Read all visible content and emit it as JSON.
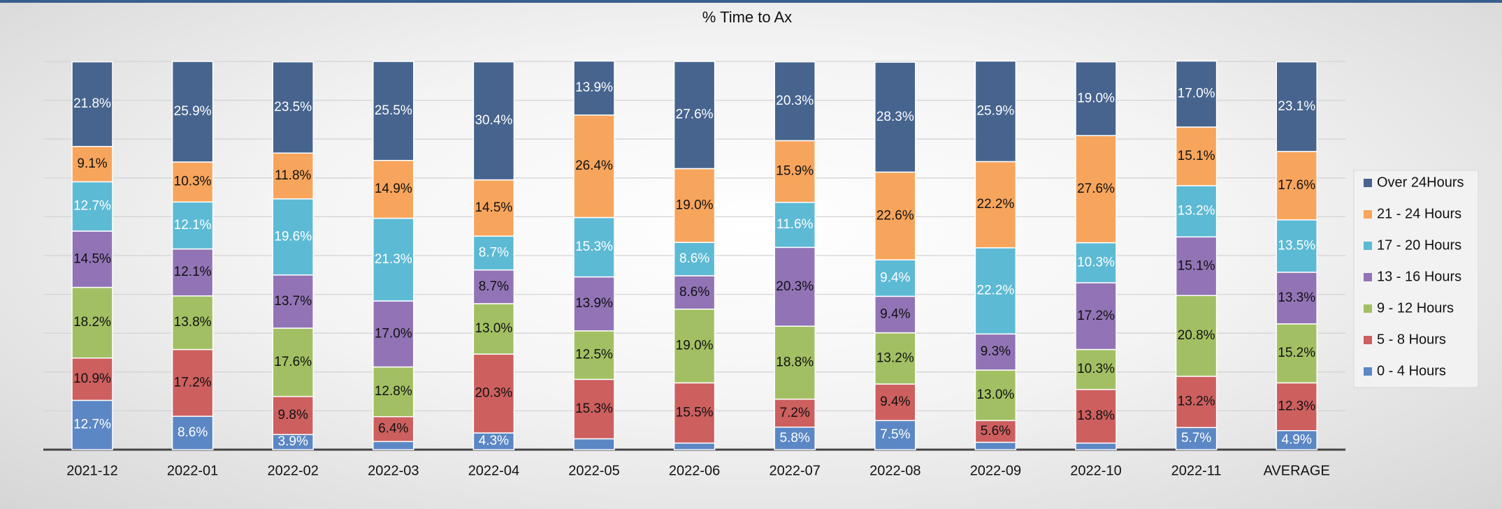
{
  "chart_data": {
    "type": "stacked_bar_100",
    "title": "% Time to Ax",
    "categories": [
      "2021-12",
      "2022-01",
      "2022-02",
      "2022-03",
      "2022-04",
      "2022-05",
      "2022-06",
      "2022-07",
      "2022-08",
      "2022-09",
      "2022-10",
      "2022-11",
      "AVERAGE"
    ],
    "ylim": [
      0,
      100
    ],
    "yticks": [
      0,
      10,
      20,
      30,
      40,
      50,
      60,
      70,
      80,
      90,
      100
    ],
    "grid": true,
    "legend": "right",
    "series": [
      {
        "name": "0 - 4 Hours",
        "color": "#5b87c5",
        "values": [
          12.7,
          8.6,
          3.9,
          2.1,
          4.3,
          2.8,
          1.7,
          5.8,
          7.5,
          1.9,
          1.7,
          5.7,
          4.9
        ],
        "value_labels": [
          "12.7%",
          "8.6%",
          "3.9%",
          null,
          "4.3%",
          null,
          null,
          "5.8%",
          "7.5%",
          null,
          null,
          "5.7%",
          "4.9%"
        ]
      },
      {
        "name": "5 - 8 Hours",
        "color": "#cd5f5f",
        "values": [
          10.9,
          17.2,
          9.8,
          6.4,
          20.3,
          15.3,
          15.5,
          7.2,
          9.4,
          5.6,
          13.8,
          13.2,
          12.3
        ],
        "value_labels": [
          "10.9%",
          "17.2%",
          "9.8%",
          "6.4%",
          "20.3%",
          "15.3%",
          "15.5%",
          "7.2%",
          "9.4%",
          "5.6%",
          "13.8%",
          "13.2%",
          "12.3%"
        ]
      },
      {
        "name": "9 - 12 Hours",
        "color": "#a2c063",
        "values": [
          18.2,
          13.8,
          17.6,
          12.8,
          13.0,
          12.5,
          19.0,
          18.8,
          13.2,
          13.0,
          10.3,
          20.8,
          15.2
        ],
        "value_labels": [
          "18.2%",
          "13.8%",
          "17.6%",
          "12.8%",
          "13.0%",
          "12.5%",
          "19.0%",
          "18.8%",
          "13.2%",
          "13.0%",
          "10.3%",
          "20.8%",
          "15.2%"
        ]
      },
      {
        "name": "13 - 16 Hours",
        "color": "#9274b6",
        "values": [
          14.5,
          12.1,
          13.7,
          17.0,
          8.7,
          13.9,
          8.6,
          20.3,
          9.4,
          9.3,
          17.2,
          15.1,
          13.3
        ],
        "value_labels": [
          "14.5%",
          "12.1%",
          "13.7%",
          "17.0%",
          "8.7%",
          "13.9%",
          "8.6%",
          "20.3%",
          "9.4%",
          "9.3%",
          "17.2%",
          "15.1%",
          "13.3%"
        ]
      },
      {
        "name": "17 - 20 Hours",
        "color": "#5dbad5",
        "values": [
          12.7,
          12.1,
          19.6,
          21.3,
          8.7,
          15.3,
          8.6,
          11.6,
          9.4,
          22.2,
          10.3,
          13.2,
          13.5
        ],
        "value_labels": [
          "12.7%",
          "12.1%",
          "19.6%",
          "21.3%",
          "8.7%",
          "15.3%",
          "8.6%",
          "11.6%",
          "9.4%",
          "22.2%",
          "10.3%",
          "13.2%",
          "13.5%"
        ]
      },
      {
        "name": "21 - 24 Hours",
        "color": "#f7a55c",
        "values": [
          9.1,
          10.3,
          11.8,
          14.9,
          14.5,
          26.4,
          19.0,
          15.9,
          22.6,
          22.2,
          27.6,
          15.1,
          17.6
        ],
        "value_labels": [
          "9.1%",
          "10.3%",
          "11.8%",
          "14.9%",
          "14.5%",
          "26.4%",
          "19.0%",
          "15.9%",
          "22.6%",
          "22.2%",
          "27.6%",
          "15.1%",
          "17.6%"
        ]
      },
      {
        "name": "Over 24Hours",
        "color": "#46648e",
        "values": [
          21.8,
          25.9,
          23.5,
          25.5,
          30.4,
          13.9,
          27.6,
          20.3,
          28.3,
          25.9,
          19.0,
          17.0,
          23.1
        ],
        "value_labels": [
          "21.8%",
          "25.9%",
          "23.5%",
          "25.5%",
          "30.4%",
          "13.9%",
          "27.6%",
          "20.3%",
          "28.3%",
          "25.9%",
          "19.0%",
          "17.0%",
          "23.1%"
        ]
      }
    ]
  }
}
